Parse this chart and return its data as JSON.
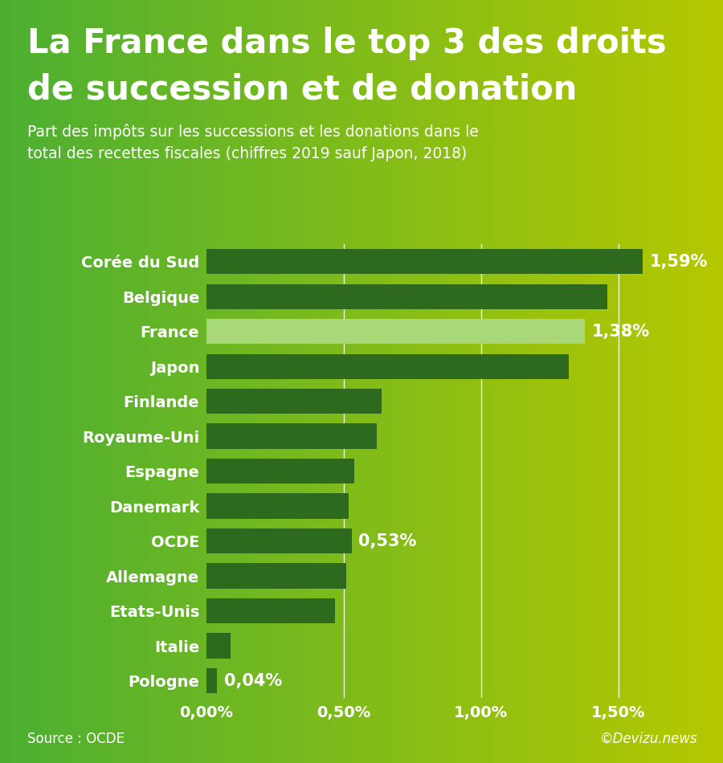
{
  "title_line1": "La France dans le top 3 des droits",
  "title_line2": "de succession et de donation",
  "subtitle_line1": "Part des impôts sur les successions et les donations dans le",
  "subtitle_line2": "total des recettes fiscales (chiffres 2019 sauf Japon, 2018)",
  "source": "Source : OCDE",
  "copyright": "©Devizu.news",
  "categories": [
    "Corée du Sud",
    "Belgique",
    "France",
    "Japon",
    "Finlande",
    "Royaume-Uni",
    "Espagne",
    "Danemark",
    "OCDE",
    "Allemagne",
    "Etats-Unis",
    "Italie",
    "Pologne"
  ],
  "values": [
    1.59,
    1.46,
    1.38,
    1.32,
    0.64,
    0.62,
    0.54,
    0.52,
    0.53,
    0.51,
    0.47,
    0.09,
    0.04
  ],
  "bar_colors": [
    "#2d6a1e",
    "#2d6a1e",
    "#a8d878",
    "#2d6a1e",
    "#2d6a1e",
    "#2d6a1e",
    "#2d6a1e",
    "#2d6a1e",
    "#2d6a1e",
    "#2d6a1e",
    "#2d6a1e",
    "#2d6a1e",
    "#2d6a1e"
  ],
  "label_annotations": {
    "Corée du Sud": "1,59%",
    "France": "1,38%",
    "OCDE": "0,53%",
    "Pologne": "0,04%"
  },
  "xlim": [
    0,
    1.75
  ],
  "xticks": [
    0.0,
    0.5,
    1.0,
    1.5
  ],
  "xtick_labels": [
    "0,00%",
    "0,50%",
    "1,00%",
    "1,50%"
  ],
  "bg_color_left": "#4caf32",
  "bg_color_right": "#b5c800",
  "bar_height": 0.72,
  "title_fontsize": 30,
  "subtitle_fontsize": 13.5,
  "label_fontsize": 14,
  "annot_fontsize": 15,
  "tick_fontsize": 14,
  "source_fontsize": 12
}
